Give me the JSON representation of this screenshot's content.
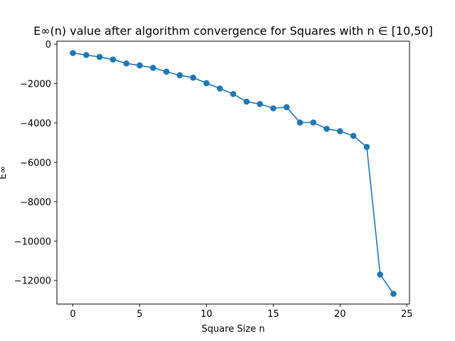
{
  "chart_data": {
    "type": "line",
    "title": "E∞(n) value after algorithm convergence for Squares with n ∈ [10,50]",
    "xlabel": "Square Size n",
    "ylabel": "E∞",
    "xlim": [
      -1.2,
      25.2
    ],
    "ylim": [
      -13200,
      150
    ],
    "xticks": [
      0,
      5,
      10,
      15,
      20,
      25
    ],
    "xtick_labels": [
      "0",
      "5",
      "10",
      "15",
      "20",
      "25"
    ],
    "yticks": [
      0,
      -2000,
      -4000,
      -6000,
      -8000,
      -10000,
      -12000
    ],
    "ytick_labels": [
      "0",
      "−2000",
      "−4000",
      "−6000",
      "−8000",
      "−10000",
      "−12000"
    ],
    "grid": false,
    "legend": "none",
    "series": [
      {
        "color": "#1f77b4",
        "marker": "circle",
        "x": [
          0,
          1,
          2,
          3,
          4,
          5,
          6,
          7,
          8,
          9,
          10,
          11,
          12,
          13,
          14,
          15,
          16,
          17,
          18,
          19,
          20,
          21,
          22,
          23,
          24
        ],
        "y": [
          -450,
          -550,
          -650,
          -780,
          -980,
          -1080,
          -1200,
          -1400,
          -1580,
          -1700,
          -1980,
          -2250,
          -2530,
          -2920,
          -3040,
          -3260,
          -3200,
          -3980,
          -3980,
          -4300,
          -4420,
          -4660,
          -5220,
          -11700,
          -12680
        ]
      }
    ]
  }
}
